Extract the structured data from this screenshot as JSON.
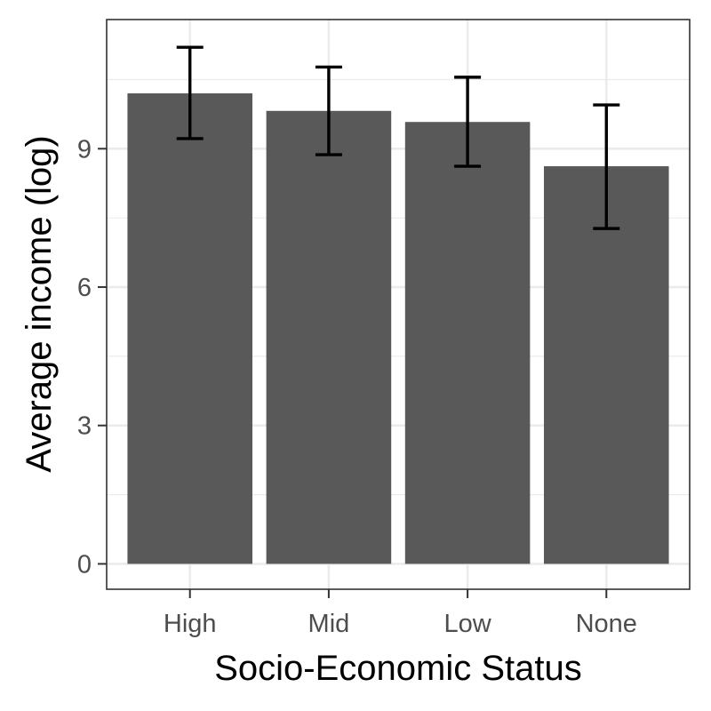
{
  "chart_data": {
    "type": "bar",
    "categories": [
      "High",
      "Mid",
      "Low",
      "None"
    ],
    "values": [
      10.2,
      9.82,
      9.58,
      8.62
    ],
    "error_bars": {
      "lower": [
        9.22,
        8.87,
        8.62,
        7.27
      ],
      "upper": [
        11.2,
        10.77,
        10.55,
        9.95
      ]
    },
    "xlabel": "Socio-Economic Status",
    "ylabel": "Average income (log)",
    "ylim": [
      -0.55,
      11.8
    ],
    "y_ticks": [
      0,
      3,
      6,
      9
    ],
    "grid": true,
    "colors": {
      "bar": "#595959",
      "error_bar": "#000000",
      "grid": "#ebebeb",
      "panel_border": "#333333",
      "tick_text": "#4d4d4d"
    }
  }
}
